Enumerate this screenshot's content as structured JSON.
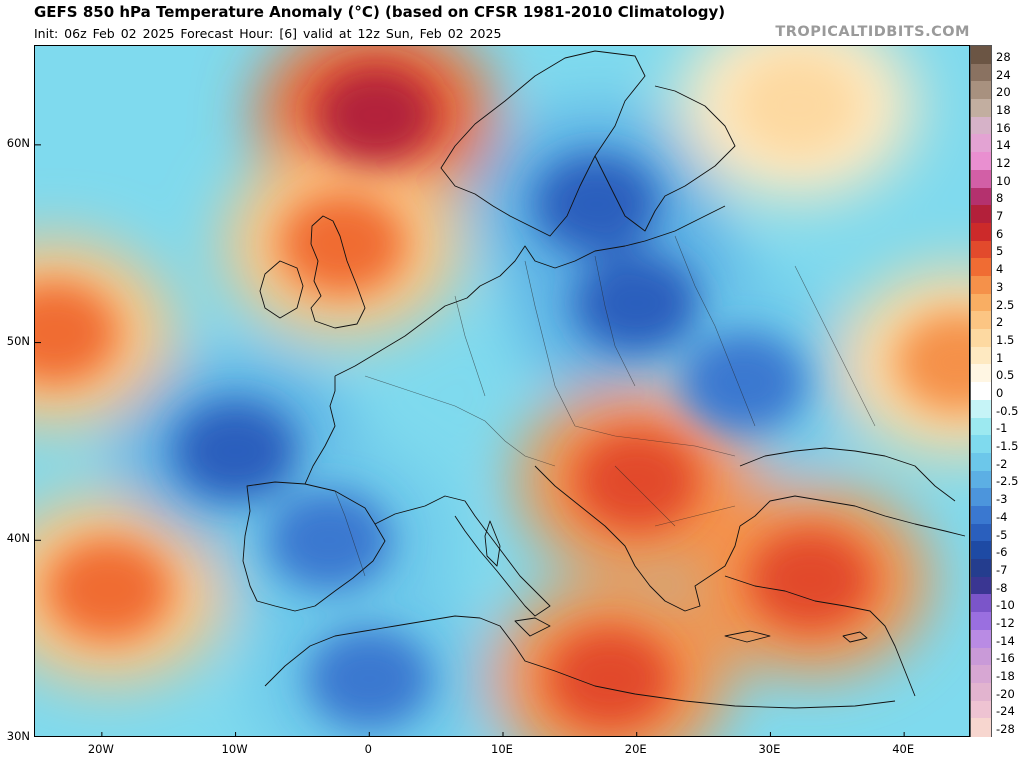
{
  "header": {
    "title": "GEFS 850 hPa Temperature Anomaly (°C) (based on CFSR 1981-2010 Climatology)",
    "subtitle": "Init: 06z Feb 02 2025   Forecast Hour: [6]   valid at 12z Sun, Feb 02 2025",
    "brand": "TROPICALTIDBITS.COM"
  },
  "map": {
    "lon_range": [
      -25,
      45
    ],
    "lat_range": [
      30,
      65
    ],
    "lat_ticks": [
      {
        "value": 60,
        "label": "60N"
      },
      {
        "value": 50,
        "label": "50N"
      },
      {
        "value": 40,
        "label": "40N"
      },
      {
        "value": 30,
        "label": "30N"
      }
    ],
    "lon_ticks": [
      {
        "value": -20,
        "label": "20W"
      },
      {
        "value": -10,
        "label": "10W"
      },
      {
        "value": 0,
        "label": "0"
      },
      {
        "value": 10,
        "label": "10E"
      },
      {
        "value": 20,
        "label": "20E"
      },
      {
        "value": 30,
        "label": "30E"
      },
      {
        "value": 40,
        "label": "40E"
      }
    ],
    "anomaly_regions": [
      {
        "name": "north-atlantic-warm",
        "lon": -23.5,
        "lat": 50.5,
        "value": 4
      },
      {
        "name": "azores-warm",
        "lon": -19.5,
        "lat": 37.5,
        "value": 4
      },
      {
        "name": "biscay-cold",
        "lon": -10,
        "lat": 44.5,
        "value": -5
      },
      {
        "name": "norway-sea-warm",
        "lon": 0.5,
        "lat": 61.5,
        "value": 7
      },
      {
        "name": "british-isles-warm",
        "lon": -2,
        "lat": 55,
        "value": 4
      },
      {
        "name": "scandinavia-cold",
        "lon": 17,
        "lat": 57,
        "value": -5
      },
      {
        "name": "poland-cold",
        "lon": 20,
        "lat": 52,
        "value": -5
      },
      {
        "name": "ukraine-cold",
        "lon": 28,
        "lat": 48,
        "value": -4
      },
      {
        "name": "finland-warm",
        "lon": 32,
        "lat": 62,
        "value": 1.5
      },
      {
        "name": "balkans-warm",
        "lon": 20,
        "lat": 43,
        "value": 5
      },
      {
        "name": "turkey-warm",
        "lon": 33,
        "lat": 38,
        "value": 5
      },
      {
        "name": "iberia-cold",
        "lon": -3,
        "lat": 40,
        "value": -4
      },
      {
        "name": "north-africa-cold",
        "lon": 0,
        "lat": 33,
        "value": -4
      },
      {
        "name": "central-med-warm",
        "lon": 18,
        "lat": 33,
        "value": 5
      },
      {
        "name": "russia-east-warm",
        "lon": 44,
        "lat": 49,
        "value": 3
      }
    ]
  },
  "colorbar": {
    "levels": [
      {
        "label": "28",
        "color": "#6b5544"
      },
      {
        "label": "24",
        "color": "#8a7261"
      },
      {
        "label": "20",
        "color": "#a8917f"
      },
      {
        "label": "18",
        "color": "#c2aea0"
      },
      {
        "label": "16",
        "color": "#d6b2c8"
      },
      {
        "label": "14",
        "color": "#e3a3d3"
      },
      {
        "label": "12",
        "color": "#e98fd0"
      },
      {
        "label": "10",
        "color": "#d25fa6"
      },
      {
        "label": "8",
        "color": "#b4316e"
      },
      {
        "label": "7",
        "color": "#b3203a"
      },
      {
        "label": "6",
        "color": "#cc2a2a"
      },
      {
        "label": "5",
        "color": "#e24a2c"
      },
      {
        "label": "4",
        "color": "#f06c33"
      },
      {
        "label": "3",
        "color": "#f5914a"
      },
      {
        "label": "2.5",
        "color": "#f9ae63"
      },
      {
        "label": "2",
        "color": "#fcc583"
      },
      {
        "label": "1.5",
        "color": "#fdd9a1"
      },
      {
        "label": "1",
        "color": "#fee9c1"
      },
      {
        "label": "0.5",
        "color": "#fff6e3"
      },
      {
        "label": "0",
        "color": "#ffffff"
      },
      {
        "label": "-0.5",
        "color": "#c6f4f7"
      },
      {
        "label": "-1",
        "color": "#9ce9f0"
      },
      {
        "label": "-1.5",
        "color": "#7fdaee"
      },
      {
        "label": "-2",
        "color": "#6cc7ea"
      },
      {
        "label": "-2.5",
        "color": "#5cafe4"
      },
      {
        "label": "-3",
        "color": "#4c95dc"
      },
      {
        "label": "-4",
        "color": "#3a78d0"
      },
      {
        "label": "-5",
        "color": "#2a5fbd"
      },
      {
        "label": "-6",
        "color": "#1e4aa4"
      },
      {
        "label": "-7",
        "color": "#243d8e"
      },
      {
        "label": "-8",
        "color": "#3a3692"
      },
      {
        "label": "-10",
        "color": "#7b55c9"
      },
      {
        "label": "-12",
        "color": "#9a6fe0"
      },
      {
        "label": "-14",
        "color": "#b98be4"
      },
      {
        "label": "-16",
        "color": "#c99ad8"
      },
      {
        "label": "-18",
        "color": "#d7a7d3"
      },
      {
        "label": "-20",
        "color": "#e2b4cf"
      },
      {
        "label": "-24",
        "color": "#eec3d2"
      },
      {
        "label": "-28",
        "color": "#f7d6cf"
      }
    ]
  }
}
